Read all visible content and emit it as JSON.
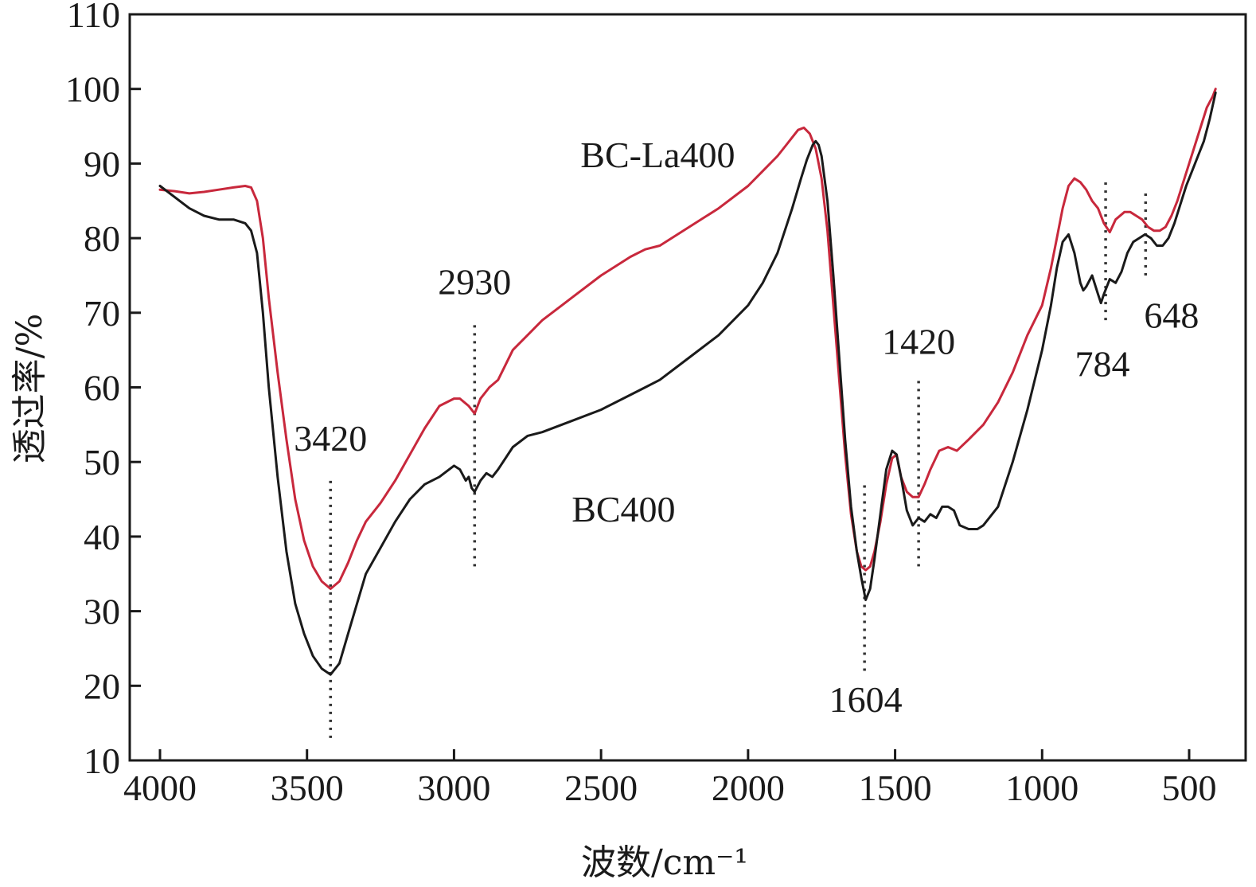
{
  "chart_data": {
    "type": "line",
    "title": "",
    "xlabel": "波数/cm⁻¹",
    "ylabel": "透过率/%",
    "xlim": [
      4000,
      400
    ],
    "ylim": [
      10,
      110
    ],
    "x_reversed": true,
    "grid": false,
    "x_ticks": [
      4000,
      3500,
      3000,
      2500,
      2000,
      1500,
      1000,
      500
    ],
    "y_ticks": [
      10,
      20,
      30,
      40,
      50,
      60,
      70,
      80,
      90,
      100,
      110
    ],
    "series": [
      {
        "name": "BC-La400",
        "color": "#c8283c",
        "x": [
          4000,
          3950,
          3900,
          3850,
          3800,
          3750,
          3710,
          3690,
          3670,
          3650,
          3630,
          3600,
          3570,
          3540,
          3510,
          3480,
          3450,
          3420,
          3390,
          3360,
          3330,
          3300,
          3250,
          3200,
          3150,
          3100,
          3050,
          3000,
          2980,
          2950,
          2930,
          2910,
          2880,
          2850,
          2800,
          2750,
          2700,
          2600,
          2500,
          2400,
          2350,
          2300,
          2200,
          2100,
          2000,
          1950,
          1900,
          1870,
          1850,
          1830,
          1810,
          1790,
          1770,
          1750,
          1730,
          1710,
          1690,
          1670,
          1650,
          1630,
          1615,
          1600,
          1585,
          1570,
          1550,
          1530,
          1510,
          1495,
          1480,
          1460,
          1440,
          1420,
          1400,
          1380,
          1350,
          1320,
          1290,
          1250,
          1200,
          1150,
          1100,
          1050,
          1000,
          970,
          950,
          930,
          910,
          890,
          870,
          850,
          830,
          810,
          790,
          770,
          750,
          720,
          700,
          680,
          660,
          640,
          620,
          600,
          580,
          560,
          540,
          520,
          500,
          480,
          460,
          440,
          420,
          410
        ],
        "y": [
          86.5,
          86.3,
          86.0,
          86.2,
          86.5,
          86.8,
          87.0,
          86.8,
          85.0,
          80.0,
          72.0,
          62.0,
          53.0,
          45.0,
          39.5,
          36.0,
          34.0,
          33.0,
          34.0,
          36.5,
          39.5,
          42.0,
          44.5,
          47.5,
          51.0,
          54.5,
          57.5,
          58.5,
          58.5,
          57.5,
          56.5,
          58.5,
          60.0,
          61.0,
          65.0,
          67.0,
          69.0,
          72.0,
          75.0,
          77.5,
          78.5,
          79.0,
          81.5,
          84.0,
          87.0,
          89.0,
          91.0,
          92.5,
          93.5,
          94.5,
          94.8,
          94.0,
          92.0,
          88.0,
          81.0,
          71.0,
          61.0,
          51.0,
          43.0,
          38.0,
          36.0,
          35.5,
          36.0,
          38.0,
          42.0,
          47.0,
          50.5,
          51.0,
          48.0,
          46.0,
          45.3,
          45.3,
          47.0,
          49.0,
          51.5,
          52.0,
          51.5,
          53.0,
          55.0,
          58.0,
          62.0,
          67.0,
          71.0,
          76.0,
          80.0,
          84.0,
          87.0,
          88.0,
          87.5,
          86.5,
          85.0,
          84.0,
          82.0,
          80.8,
          82.5,
          83.5,
          83.5,
          83.0,
          82.5,
          81.5,
          81.0,
          81.0,
          81.5,
          83.0,
          85.0,
          87.5,
          90.0,
          92.5,
          95.0,
          97.5,
          99.0,
          100.0
        ]
      },
      {
        "name": "BC400",
        "color": "#1a1a1a",
        "x": [
          4000,
          3950,
          3900,
          3850,
          3800,
          3750,
          3710,
          3690,
          3670,
          3650,
          3630,
          3600,
          3570,
          3540,
          3510,
          3480,
          3450,
          3420,
          3390,
          3360,
          3330,
          3300,
          3250,
          3200,
          3150,
          3100,
          3050,
          3000,
          2980,
          2960,
          2950,
          2940,
          2930,
          2910,
          2890,
          2870,
          2850,
          2800,
          2750,
          2700,
          2600,
          2500,
          2400,
          2350,
          2300,
          2200,
          2100,
          2000,
          1950,
          1900,
          1850,
          1820,
          1800,
          1780,
          1770,
          1760,
          1750,
          1730,
          1710,
          1690,
          1670,
          1650,
          1630,
          1615,
          1600,
          1585,
          1570,
          1550,
          1530,
          1510,
          1495,
          1480,
          1460,
          1440,
          1420,
          1400,
          1380,
          1360,
          1340,
          1320,
          1300,
          1280,
          1250,
          1220,
          1200,
          1150,
          1100,
          1050,
          1000,
          970,
          950,
          930,
          910,
          890,
          870,
          860,
          850,
          830,
          810,
          800,
          790,
          770,
          750,
          730,
          710,
          690,
          670,
          650,
          630,
          610,
          590,
          570,
          550,
          530,
          510,
          490,
          470,
          450,
          430,
          410
        ],
        "y": [
          87.0,
          85.5,
          84.0,
          83.0,
          82.5,
          82.5,
          82.0,
          81.0,
          78.0,
          70.0,
          60.0,
          48.0,
          38.0,
          31.0,
          27.0,
          24.0,
          22.3,
          21.5,
          23.0,
          27.0,
          31.0,
          35.0,
          38.5,
          42.0,
          45.0,
          47.0,
          48.0,
          49.5,
          49.0,
          47.5,
          48.0,
          46.5,
          46.0,
          47.5,
          48.5,
          48.0,
          49.0,
          52.0,
          53.5,
          54.0,
          55.5,
          57.0,
          59.0,
          60.0,
          61.0,
          64.0,
          67.0,
          71.0,
          74.0,
          78.0,
          84.0,
          88.0,
          90.5,
          92.5,
          93.0,
          92.5,
          91.0,
          85.0,
          75.0,
          64.0,
          53.0,
          44.0,
          38.0,
          34.5,
          31.5,
          33.0,
          37.0,
          43.0,
          49.0,
          51.5,
          51.0,
          48.0,
          43.5,
          41.5,
          42.5,
          42.0,
          43.0,
          42.5,
          44.0,
          44.0,
          43.5,
          41.5,
          41.0,
          41.0,
          41.5,
          44.0,
          50.0,
          57.0,
          65.0,
          71.0,
          76.0,
          79.5,
          80.5,
          78.0,
          74.0,
          73.0,
          73.5,
          75.0,
          72.5,
          71.3,
          72.5,
          74.5,
          74.0,
          75.5,
          78.0,
          79.5,
          80.0,
          80.5,
          80.0,
          79.0,
          79.0,
          80.0,
          82.0,
          84.5,
          87.0,
          89.0,
          91.0,
          93.0,
          96.0,
          99.5
        ]
      }
    ],
    "series_labels": [
      {
        "text": "BC-La400",
        "at": [
          2570,
          89.5
        ]
      },
      {
        "text": "BC400",
        "at": [
          2600,
          42.0
        ]
      }
    ],
    "annotations": [
      {
        "text": "3420",
        "x": 3420,
        "line_y": [
          13,
          48
        ],
        "label_at": [
          3420,
          51.5
        ]
      },
      {
        "text": "2930",
        "x": 2930,
        "line_y": [
          36,
          69
        ],
        "label_at": [
          2930,
          72.5
        ]
      },
      {
        "text": "1604",
        "x": 1604,
        "line_y": [
          22,
          47
        ],
        "label_at": [
          1600,
          16.5
        ]
      },
      {
        "text": "1420",
        "x": 1420,
        "line_y": [
          36,
          61
        ],
        "label_at": [
          1420,
          64.5
        ]
      },
      {
        "text": "784",
        "x": 784,
        "line_y": [
          69,
          88
        ],
        "label_at": [
          795,
          61.5
        ]
      },
      {
        "text": "648",
        "x": 648,
        "line_y": [
          75,
          86
        ],
        "label_at": [
          560,
          68.0
        ]
      }
    ]
  }
}
